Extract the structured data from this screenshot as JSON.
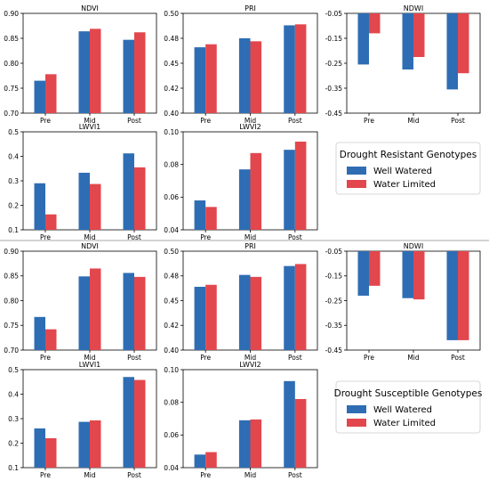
{
  "colors": {
    "well_watered": "#2e6db4",
    "water_limited": "#e2474d",
    "axis": "#000000",
    "divider": "#aaaaaa"
  },
  "legends": [
    {
      "title": "Drought Resistant Genotypes",
      "items": [
        "Well Watered",
        "Water Limited"
      ]
    },
    {
      "title": "Drought Susceptible Genotypes",
      "items": [
        "Well Watered",
        "Water Limited"
      ]
    }
  ],
  "chart_data": [
    {
      "type": "bar",
      "group": "resistant",
      "title": "NDVI",
      "categories": [
        "Pre",
        "Mid",
        "Post"
      ],
      "series": [
        {
          "name": "Well Watered",
          "values": [
            0.765,
            0.864,
            0.847
          ]
        },
        {
          "name": "Water Limited",
          "values": [
            0.778,
            0.869,
            0.862
          ]
        }
      ],
      "ylim": [
        0.7,
        0.9
      ],
      "yticks": [
        "0.70",
        "0.75",
        "0.80",
        "0.85",
        "0.90"
      ],
      "ytick_values": [
        0.7,
        0.75,
        0.8,
        0.85,
        0.9
      ]
    },
    {
      "type": "bar",
      "group": "resistant",
      "title": "PRI",
      "categories": [
        "Pre",
        "Mid",
        "Post"
      ],
      "series": [
        {
          "name": "Well Watered",
          "values": [
            0.466,
            0.475,
            0.488
          ]
        },
        {
          "name": "Water Limited",
          "values": [
            0.469,
            0.472,
            0.489
          ]
        }
      ],
      "ylim": [
        0.4,
        0.5
      ],
      "yticks": [
        "0.40",
        "0.42",
        "0.45",
        "0.48",
        "0.50"
      ],
      "ytick_values": [
        0.4,
        0.425,
        0.45,
        0.475,
        0.5
      ]
    },
    {
      "type": "bar",
      "group": "resistant",
      "title": "NDWI",
      "categories": [
        "Pre",
        "Mid",
        "Post"
      ],
      "series": [
        {
          "name": "Well Watered",
          "values": [
            -0.255,
            -0.275,
            -0.355
          ]
        },
        {
          "name": "Water Limited",
          "values": [
            -0.13,
            -0.225,
            -0.29
          ]
        }
      ],
      "ylim": [
        -0.45,
        -0.05
      ],
      "yticks": [
        "-0.05",
        "-0.15",
        "-0.25",
        "-0.35",
        "-0.45"
      ],
      "ytick_values": [
        -0.05,
        -0.15,
        -0.25,
        -0.35,
        -0.45
      ],
      "bar_from": -0.05
    },
    {
      "type": "bar",
      "group": "resistant",
      "title": "LWVI1",
      "categories": [
        "Pre",
        "Mid",
        "Post"
      ],
      "series": [
        {
          "name": "Well Watered",
          "values": [
            0.29,
            0.333,
            0.412
          ]
        },
        {
          "name": "Water Limited",
          "values": [
            0.163,
            0.287,
            0.355
          ]
        }
      ],
      "ylim": [
        0.1,
        0.5
      ],
      "yticks": [
        "0.1",
        "0.2",
        "0.3",
        "0.4",
        "0.5"
      ],
      "ytick_values": [
        0.1,
        0.2,
        0.3,
        0.4,
        0.5
      ]
    },
    {
      "type": "bar",
      "group": "resistant",
      "title": "LWVI2",
      "categories": [
        "Pre",
        "Mid",
        "Post"
      ],
      "series": [
        {
          "name": "Well Watered",
          "values": [
            0.058,
            0.077,
            0.089
          ]
        },
        {
          "name": "Water Limited",
          "values": [
            0.054,
            0.087,
            0.094
          ]
        }
      ],
      "ylim": [
        0.04,
        0.1
      ],
      "yticks": [
        "0.04",
        "0.06",
        "0.08",
        "0.10"
      ],
      "ytick_values": [
        0.04,
        0.06,
        0.08,
        0.1
      ]
    },
    {
      "type": "bar",
      "group": "susceptible",
      "title": "NDVI",
      "categories": [
        "Pre",
        "Mid",
        "Post"
      ],
      "series": [
        {
          "name": "Well Watered",
          "values": [
            0.767,
            0.849,
            0.856
          ]
        },
        {
          "name": "Water Limited",
          "values": [
            0.742,
            0.865,
            0.848
          ]
        }
      ],
      "ylim": [
        0.7,
        0.9
      ],
      "yticks": [
        "0.70",
        "0.75",
        "0.80",
        "0.85",
        "0.90"
      ],
      "ytick_values": [
        0.7,
        0.75,
        0.8,
        0.85,
        0.9
      ]
    },
    {
      "type": "bar",
      "group": "susceptible",
      "title": "PRI",
      "categories": [
        "Pre",
        "Mid",
        "Post"
      ],
      "series": [
        {
          "name": "Well Watered",
          "values": [
            0.464,
            0.476,
            0.485
          ]
        },
        {
          "name": "Water Limited",
          "values": [
            0.466,
            0.474,
            0.487
          ]
        }
      ],
      "ylim": [
        0.4,
        0.5
      ],
      "yticks": [
        "0.40",
        "0.42",
        "0.45",
        "0.48",
        "0.50"
      ],
      "ytick_values": [
        0.4,
        0.425,
        0.45,
        0.475,
        0.5
      ]
    },
    {
      "type": "bar",
      "group": "susceptible",
      "title": "NDWI",
      "categories": [
        "Pre",
        "Mid",
        "Post"
      ],
      "series": [
        {
          "name": "Well Watered",
          "values": [
            -0.23,
            -0.24,
            -0.41
          ]
        },
        {
          "name": "Water Limited",
          "values": [
            -0.19,
            -0.245,
            -0.41
          ]
        }
      ],
      "ylim": [
        -0.45,
        -0.05
      ],
      "yticks": [
        "-0.05",
        "-0.15",
        "-0.25",
        "-0.35",
        "-0.45"
      ],
      "ytick_values": [
        -0.05,
        -0.15,
        -0.25,
        -0.35,
        -0.45
      ],
      "bar_from": -0.05
    },
    {
      "type": "bar",
      "group": "susceptible",
      "title": "LWVI1",
      "categories": [
        "Pre",
        "Mid",
        "Post"
      ],
      "series": [
        {
          "name": "Well Watered",
          "values": [
            0.26,
            0.287,
            0.47
          ]
        },
        {
          "name": "Water Limited",
          "values": [
            0.22,
            0.293,
            0.458
          ]
        }
      ],
      "ylim": [
        0.1,
        0.5
      ],
      "yticks": [
        "0.1",
        "0.2",
        "0.3",
        "0.4",
        "0.5"
      ],
      "ytick_values": [
        0.1,
        0.2,
        0.3,
        0.4,
        0.5
      ]
    },
    {
      "type": "bar",
      "group": "susceptible",
      "title": "LWVI2",
      "categories": [
        "Pre",
        "Mid",
        "Post"
      ],
      "series": [
        {
          "name": "Well Watered",
          "values": [
            0.048,
            0.069,
            0.093
          ]
        },
        {
          "name": "Water Limited",
          "values": [
            0.0495,
            0.0695,
            0.082
          ]
        }
      ],
      "ylim": [
        0.04,
        0.1
      ],
      "yticks": [
        "0.04",
        "0.06",
        "0.08",
        "0.10"
      ],
      "ytick_values": [
        0.04,
        0.06,
        0.08,
        0.1
      ]
    }
  ]
}
